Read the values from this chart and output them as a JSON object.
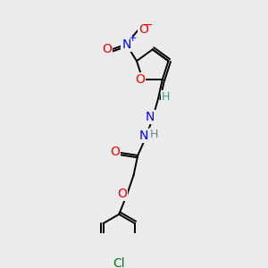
{
  "bg_color": "#ebebeb",
  "bond_color": "#000000",
  "atom_colors": {
    "O": "#ff0000",
    "N": "#0000ff",
    "Cl": "#008000",
    "H": "#4a9090",
    "plus": "#0000ff",
    "minus": "#ff0000"
  },
  "font_size_atom": 10,
  "font_size_small": 9,
  "line_width": 1.4
}
